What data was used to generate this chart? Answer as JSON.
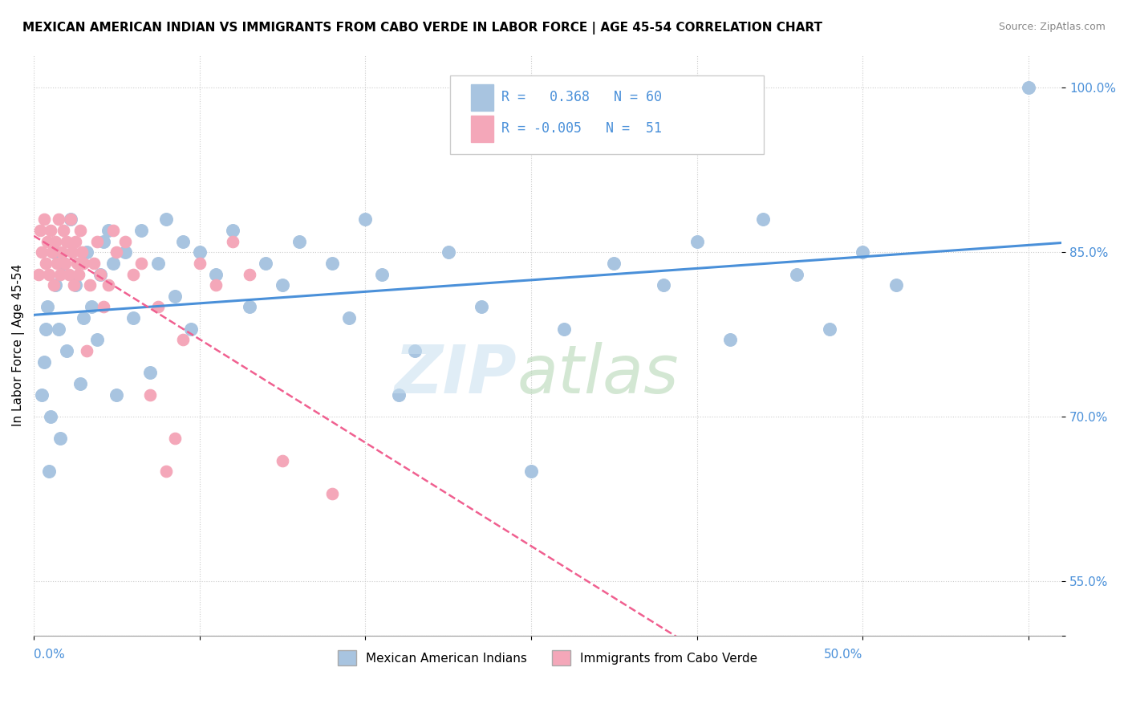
{
  "title": "MEXICAN AMERICAN INDIAN VS IMMIGRANTS FROM CABO VERDE IN LABOR FORCE | AGE 45-54 CORRELATION CHART",
  "source": "Source: ZipAtlas.com",
  "ylabel": "In Labor Force | Age 45-54",
  "xmin": 0.0,
  "xmax": 0.62,
  "ymin": 0.5,
  "ymax": 1.03,
  "legend1_label": "Mexican American Indians",
  "legend2_label": "Immigrants from Cabo Verde",
  "R1": 0.368,
  "N1": 60,
  "R2": -0.005,
  "N2": 51,
  "blue_color": "#a8c4e0",
  "pink_color": "#f4a7b9",
  "blue_line_color": "#4a90d9",
  "pink_line_color": "#f06090",
  "blue_scatter_x": [
    0.005,
    0.006,
    0.007,
    0.008,
    0.009,
    0.01,
    0.012,
    0.013,
    0.015,
    0.016,
    0.018,
    0.02,
    0.022,
    0.025,
    0.028,
    0.03,
    0.032,
    0.035,
    0.038,
    0.04,
    0.042,
    0.045,
    0.048,
    0.05,
    0.055,
    0.06,
    0.065,
    0.07,
    0.075,
    0.08,
    0.085,
    0.09,
    0.095,
    0.1,
    0.11,
    0.12,
    0.13,
    0.14,
    0.15,
    0.16,
    0.18,
    0.19,
    0.2,
    0.21,
    0.22,
    0.23,
    0.25,
    0.27,
    0.3,
    0.32,
    0.35,
    0.38,
    0.4,
    0.42,
    0.44,
    0.46,
    0.48,
    0.5,
    0.52,
    0.6
  ],
  "blue_scatter_y": [
    0.72,
    0.75,
    0.78,
    0.8,
    0.65,
    0.7,
    0.85,
    0.82,
    0.78,
    0.68,
    0.84,
    0.76,
    0.88,
    0.82,
    0.73,
    0.79,
    0.85,
    0.8,
    0.77,
    0.83,
    0.86,
    0.87,
    0.84,
    0.72,
    0.85,
    0.79,
    0.87,
    0.74,
    0.84,
    0.88,
    0.81,
    0.86,
    0.78,
    0.85,
    0.83,
    0.87,
    0.8,
    0.84,
    0.82,
    0.86,
    0.84,
    0.79,
    0.88,
    0.83,
    0.72,
    0.76,
    0.85,
    0.8,
    0.65,
    0.78,
    0.84,
    0.82,
    0.86,
    0.77,
    0.88,
    0.83,
    0.78,
    0.85,
    0.82,
    1.0
  ],
  "pink_scatter_x": [
    0.003,
    0.004,
    0.005,
    0.006,
    0.007,
    0.008,
    0.009,
    0.01,
    0.011,
    0.012,
    0.013,
    0.014,
    0.015,
    0.016,
    0.017,
    0.018,
    0.019,
    0.02,
    0.021,
    0.022,
    0.023,
    0.024,
    0.025,
    0.026,
    0.027,
    0.028,
    0.029,
    0.03,
    0.032,
    0.034,
    0.036,
    0.038,
    0.04,
    0.042,
    0.045,
    0.048,
    0.05,
    0.055,
    0.06,
    0.065,
    0.07,
    0.075,
    0.08,
    0.085,
    0.09,
    0.1,
    0.11,
    0.12,
    0.13,
    0.15,
    0.18
  ],
  "pink_scatter_y": [
    0.83,
    0.87,
    0.85,
    0.88,
    0.84,
    0.86,
    0.83,
    0.87,
    0.85,
    0.82,
    0.86,
    0.84,
    0.88,
    0.83,
    0.85,
    0.87,
    0.84,
    0.86,
    0.83,
    0.88,
    0.85,
    0.82,
    0.86,
    0.84,
    0.83,
    0.87,
    0.85,
    0.84,
    0.76,
    0.82,
    0.84,
    0.86,
    0.83,
    0.8,
    0.82,
    0.87,
    0.85,
    0.86,
    0.83,
    0.84,
    0.72,
    0.8,
    0.65,
    0.68,
    0.77,
    0.84,
    0.82,
    0.86,
    0.83,
    0.66,
    0.63
  ]
}
